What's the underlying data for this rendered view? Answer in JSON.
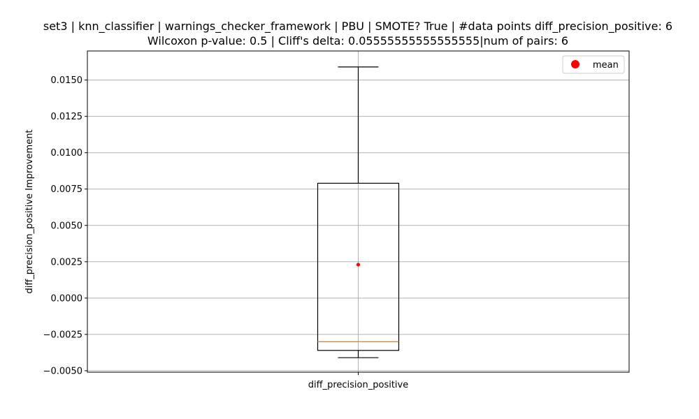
{
  "chart_data": {
    "type": "box",
    "title_line1": "set3 | knn_classifier | warnings_checker_framework | PBU | SMOTE? True | #data points diff_precision_positive: 6",
    "title_line2": "Wilcoxon p-value: 0.5 | Cliff's delta: 0.05555555555555555|num of pairs: 6",
    "xlabel": "",
    "ylabel": "diff_precision_positive Improvement",
    "categories": [
      "diff_precision_positive"
    ],
    "ylim": [
      -0.0051,
      0.017
    ],
    "yticks": [
      -0.005,
      -0.0025,
      0.0,
      0.0025,
      0.005,
      0.0075,
      0.01,
      0.0125,
      0.015
    ],
    "ytick_labels": [
      "−0.0050",
      "−0.0025",
      "0.0000",
      "0.0025",
      "0.0050",
      "0.0075",
      "0.0100",
      "0.0125",
      "0.0150"
    ],
    "grid": true,
    "legend": {
      "placement": "top-right",
      "entries": [
        {
          "label": "mean",
          "color": "#ff0000"
        }
      ]
    },
    "box": {
      "whisker_low": -0.0041,
      "q1": -0.0036,
      "median": -0.003,
      "q3": 0.0079,
      "whisker_high": 0.0159,
      "mean": 0.0023
    },
    "colors": {
      "box": "#000000",
      "median": "#ff7f0e",
      "mean": "#ff0000",
      "grid": "#b0b0b0"
    }
  }
}
